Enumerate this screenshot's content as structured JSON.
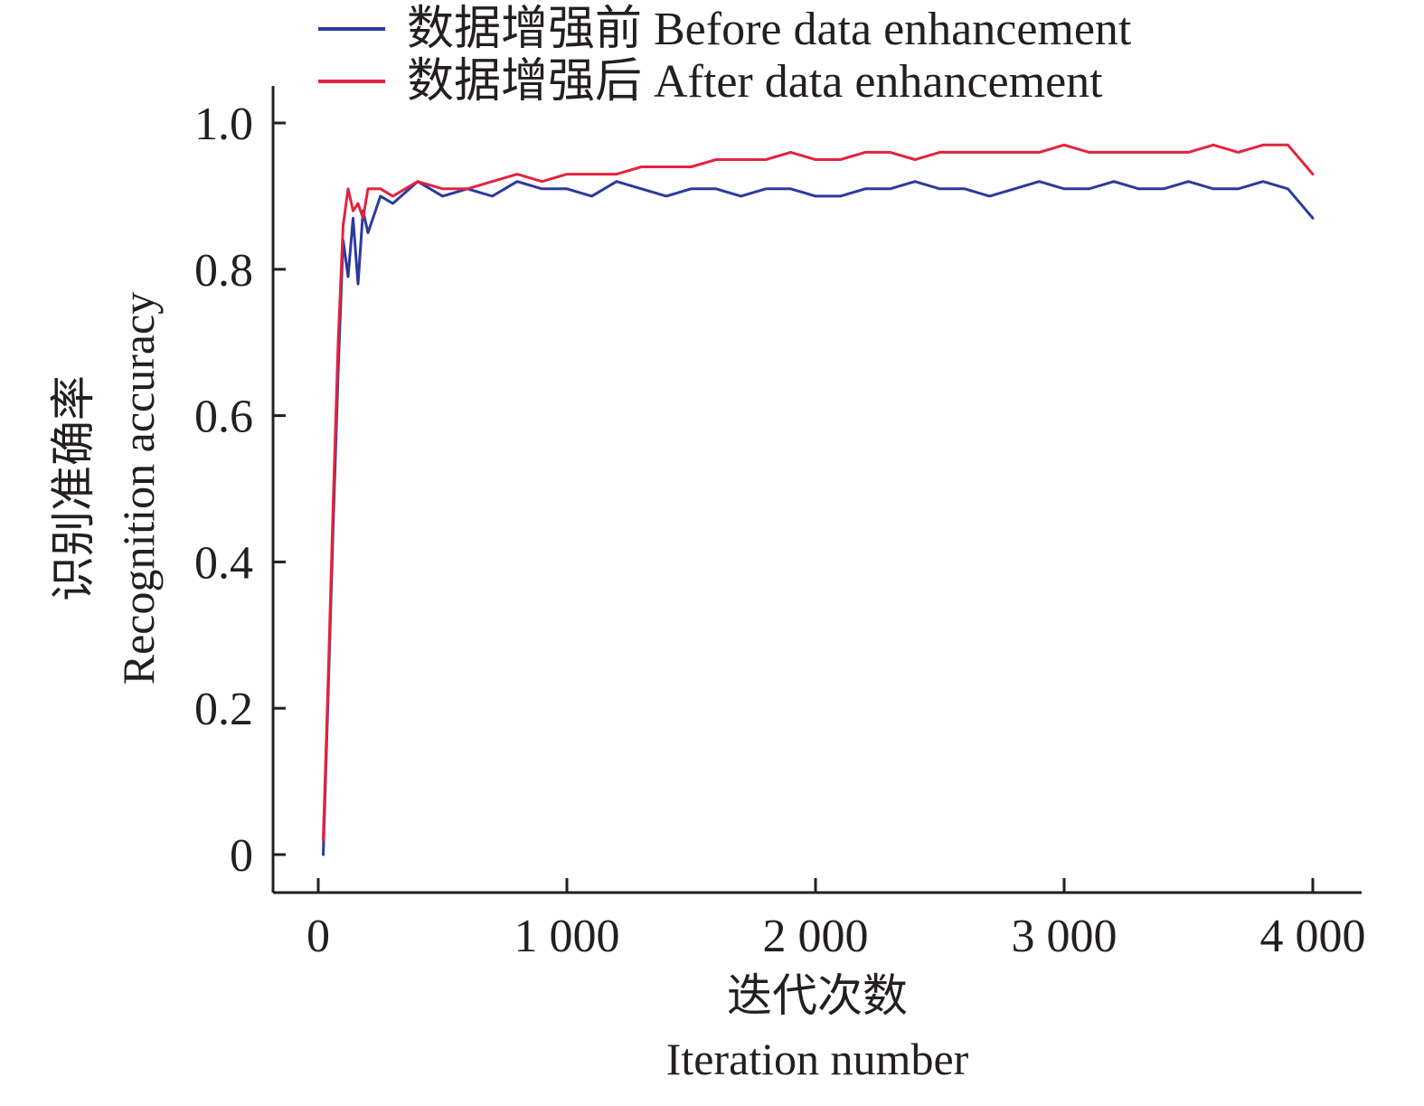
{
  "chart_data": {
    "type": "line",
    "xlabel_cn": "迭代次数",
    "xlabel_en": "Iteration number",
    "ylabel_cn": "识别准确率",
    "ylabel_en": "Recognition accuracy",
    "xlim": [
      0,
      4000
    ],
    "ylim": [
      0,
      1.0
    ],
    "x_ticks": [
      0,
      1000,
      2000,
      3000,
      4000
    ],
    "x_tick_labels": [
      "0",
      "1 000",
      "2 000",
      "3 000",
      "4 000"
    ],
    "y_ticks": [
      0,
      0.2,
      0.4,
      0.6,
      0.8,
      1.0
    ],
    "y_tick_labels": [
      "0",
      "0.2",
      "0.4",
      "0.6",
      "0.8",
      "1.0"
    ],
    "grid": false,
    "legend_position": "top",
    "series": [
      {
        "name": "数据增强前 Before data enhancement",
        "color": "#2b3a9c",
        "x": [
          20,
          40,
          60,
          80,
          100,
          120,
          140,
          160,
          180,
          200,
          250,
          300,
          400,
          500,
          600,
          700,
          800,
          900,
          1000,
          1100,
          1200,
          1300,
          1400,
          1500,
          1600,
          1700,
          1800,
          1900,
          2000,
          2100,
          2200,
          2300,
          2400,
          2500,
          2600,
          2700,
          2800,
          2900,
          3000,
          3100,
          3200,
          3300,
          3400,
          3500,
          3600,
          3700,
          3800,
          3900,
          4000
        ],
        "values": [
          0.0,
          0.22,
          0.45,
          0.66,
          0.84,
          0.79,
          0.87,
          0.78,
          0.88,
          0.85,
          0.9,
          0.89,
          0.92,
          0.9,
          0.91,
          0.9,
          0.92,
          0.91,
          0.91,
          0.9,
          0.92,
          0.91,
          0.9,
          0.91,
          0.91,
          0.9,
          0.91,
          0.91,
          0.9,
          0.9,
          0.91,
          0.91,
          0.92,
          0.91,
          0.91,
          0.9,
          0.91,
          0.92,
          0.91,
          0.91,
          0.92,
          0.91,
          0.91,
          0.92,
          0.91,
          0.91,
          0.92,
          0.91,
          0.87
        ]
      },
      {
        "name": "数据增强后 After data enhancement",
        "color": "#e5233d",
        "x": [
          20,
          40,
          60,
          80,
          100,
          120,
          140,
          160,
          180,
          200,
          250,
          300,
          400,
          500,
          600,
          700,
          800,
          900,
          1000,
          1100,
          1200,
          1300,
          1400,
          1500,
          1600,
          1700,
          1800,
          1900,
          2000,
          2100,
          2200,
          2300,
          2400,
          2500,
          2600,
          2700,
          2800,
          2900,
          3000,
          3100,
          3200,
          3300,
          3400,
          3500,
          3600,
          3700,
          3800,
          3900,
          4000
        ],
        "values": [
          0.02,
          0.24,
          0.48,
          0.7,
          0.86,
          0.91,
          0.88,
          0.89,
          0.87,
          0.91,
          0.91,
          0.9,
          0.92,
          0.91,
          0.91,
          0.92,
          0.93,
          0.92,
          0.93,
          0.93,
          0.93,
          0.94,
          0.94,
          0.94,
          0.95,
          0.95,
          0.95,
          0.96,
          0.95,
          0.95,
          0.96,
          0.96,
          0.95,
          0.96,
          0.96,
          0.96,
          0.96,
          0.96,
          0.97,
          0.96,
          0.96,
          0.96,
          0.96,
          0.96,
          0.97,
          0.96,
          0.97,
          0.97,
          0.93
        ]
      }
    ]
  }
}
